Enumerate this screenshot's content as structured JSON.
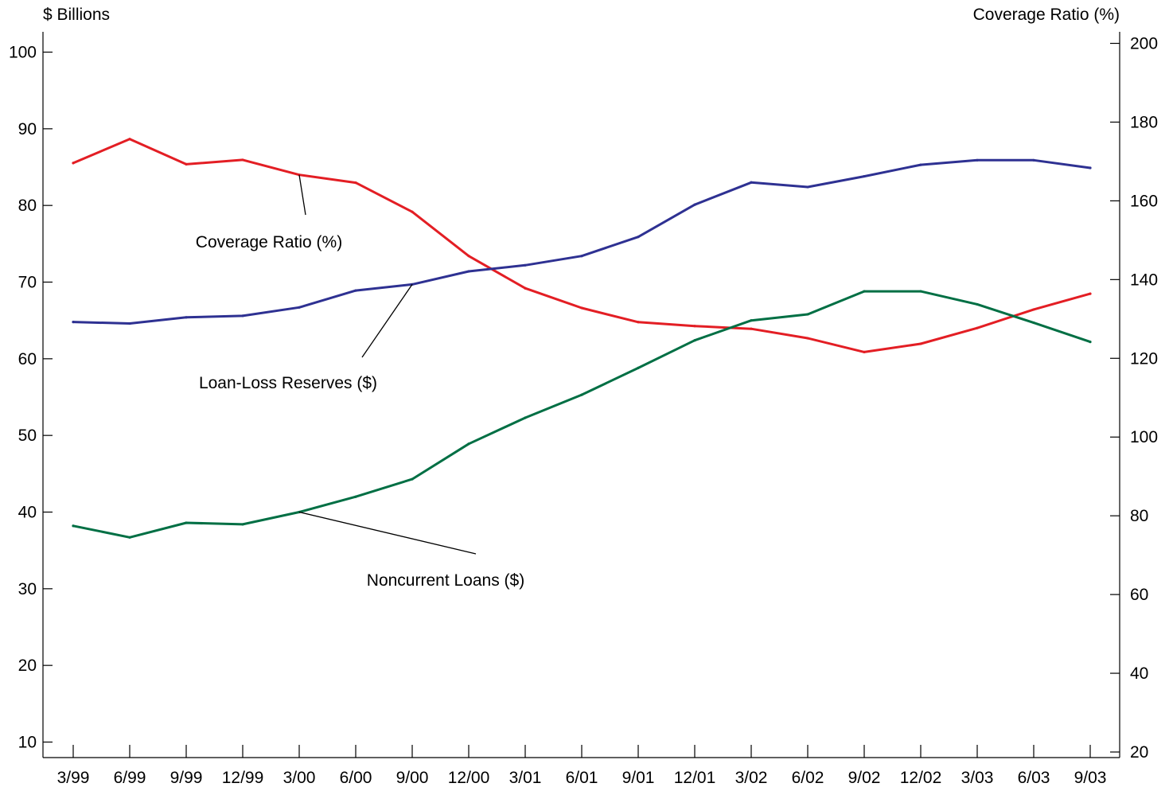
{
  "chart_data": {
    "type": "line",
    "left_axis_label": "$ Billions",
    "right_axis_label": "Coverage Ratio (%)",
    "categories": [
      "3/99",
      "6/99",
      "9/99",
      "12/99",
      "3/00",
      "6/00",
      "9/00",
      "12/00",
      "3/01",
      "6/01",
      "9/01",
      "12/01",
      "3/02",
      "6/02",
      "9/02",
      "12/02",
      "3/03",
      "6/03",
      "9/03"
    ],
    "left_axis": {
      "ylim": [
        10,
        100
      ],
      "ticks": [
        10,
        20,
        30,
        40,
        50,
        60,
        70,
        80,
        90,
        100
      ]
    },
    "right_axis": {
      "ylim": [
        20,
        200
      ],
      "ticks": [
        20,
        40,
        60,
        80,
        100,
        120,
        140,
        160,
        180,
        200
      ]
    },
    "series": [
      {
        "name": "Coverage Ratio (%)",
        "axis": "right",
        "color": "#e31e24",
        "values": [
          169.6,
          175.7,
          169.3,
          170.4,
          166.6,
          164.6,
          157.2,
          146.0,
          137.8,
          132.8,
          129.2,
          128.2,
          127.5,
          125.1,
          121.6,
          123.7,
          127.7,
          132.4,
          136.4
        ]
      },
      {
        "name": "Loan-Loss Reserves ($)",
        "axis": "left",
        "color": "#2e3192",
        "values": [
          64.8,
          64.6,
          65.4,
          65.6,
          66.7,
          68.9,
          69.7,
          71.4,
          72.2,
          73.4,
          75.9,
          80.1,
          83.0,
          82.4,
          83.8,
          85.3,
          85.9,
          85.9,
          84.9
        ]
      },
      {
        "name": "Noncurrent Loans ($)",
        "axis": "left",
        "color": "#006f44",
        "values": [
          38.2,
          36.7,
          38.6,
          38.4,
          40.0,
          42.0,
          44.3,
          48.9,
          52.3,
          55.3,
          58.8,
          62.4,
          65.0,
          65.8,
          68.8,
          68.8,
          67.1,
          64.7,
          62.2
        ]
      }
    ],
    "annotations": [
      {
        "text": "Coverage Ratio (%)",
        "series": 0
      },
      {
        "text": "Loan-Loss Reserves ($)",
        "series": 1
      },
      {
        "text": "Noncurrent Loans ($)",
        "series": 2
      }
    ],
    "grid": false,
    "legend": "none"
  }
}
